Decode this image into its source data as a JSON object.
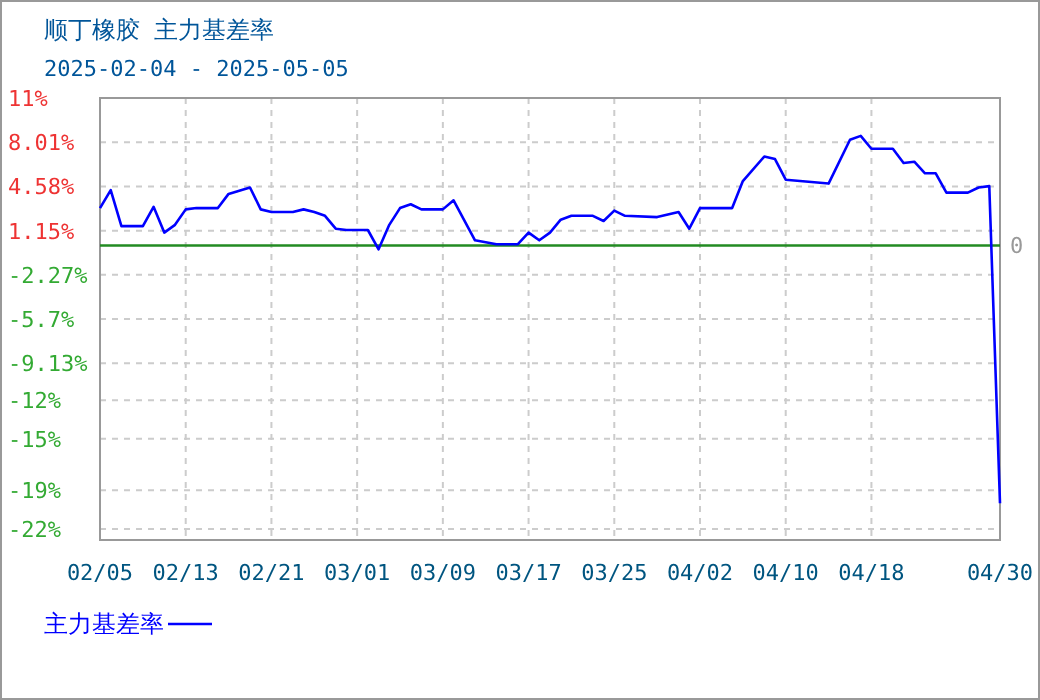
{
  "chart_data": {
    "type": "line",
    "title": "顺丁橡胶  主力基差率",
    "subtitle": "2025-02-04 - 2025-05-05",
    "x": [
      "2025-02-05",
      "2025-02-06",
      "2025-02-07",
      "2025-02-09",
      "2025-02-10",
      "2025-02-11",
      "2025-02-12",
      "2025-02-13",
      "2025-02-14",
      "2025-02-16",
      "2025-02-17",
      "2025-02-19",
      "2025-02-20",
      "2025-02-21",
      "2025-02-23",
      "2025-02-24",
      "2025-02-25",
      "2025-02-26",
      "2025-02-27",
      "2025-02-28",
      "2025-03-02",
      "2025-03-03",
      "2025-03-04",
      "2025-03-05",
      "2025-03-06",
      "2025-03-07",
      "2025-03-09",
      "2025-03-10",
      "2025-03-12",
      "2025-03-14",
      "2025-03-16",
      "2025-03-17",
      "2025-03-18",
      "2025-03-19",
      "2025-03-20",
      "2025-03-21",
      "2025-03-23",
      "2025-03-24",
      "2025-03-25",
      "2025-03-26",
      "2025-03-29",
      "2025-03-31",
      "2025-04-01",
      "2025-04-02",
      "2025-04-05",
      "2025-04-06",
      "2025-04-08",
      "2025-04-09",
      "2025-04-10",
      "2025-04-14",
      "2025-04-16",
      "2025-04-17",
      "2025-04-18",
      "2025-04-20",
      "2025-04-21",
      "2025-04-22",
      "2025-04-23",
      "2025-04-24",
      "2025-04-25",
      "2025-04-27",
      "2025-04-28",
      "2025-04-29",
      "2025-04-30"
    ],
    "series": [
      {
        "name": "主力基差率",
        "color": "#0000ff",
        "values": [
          2.9,
          4.3,
          1.5,
          1.5,
          3.0,
          1.0,
          1.6,
          2.8,
          2.9,
          2.9,
          4.0,
          4.5,
          2.8,
          2.6,
          2.6,
          2.8,
          2.6,
          2.3,
          1.3,
          1.2,
          1.2,
          -0.3,
          1.6,
          2.9,
          3.2,
          2.8,
          2.8,
          3.5,
          0.4,
          0.1,
          0.1,
          1.0,
          0.4,
          1.0,
          2.0,
          2.3,
          2.3,
          1.9,
          2.7,
          2.3,
          2.2,
          2.6,
          1.3,
          2.9,
          2.9,
          5.0,
          6.9,
          6.7,
          5.1,
          4.8,
          8.2,
          8.5,
          7.5,
          7.5,
          6.4,
          6.5,
          5.6,
          5.6,
          4.1,
          4.1,
          4.5,
          4.6,
          -20.0
        ]
      }
    ],
    "xlim": [
      "2025-02-05",
      "2025-04-30"
    ],
    "xticks": [
      {
        "value": "2025-02-05",
        "label": "02/05"
      },
      {
        "value": "2025-02-13",
        "label": "02/13"
      },
      {
        "value": "2025-02-21",
        "label": "02/21"
      },
      {
        "value": "2025-03-01",
        "label": "03/01"
      },
      {
        "value": "2025-03-09",
        "label": "03/09"
      },
      {
        "value": "2025-03-17",
        "label": "03/17"
      },
      {
        "value": "2025-03-25",
        "label": "03/25"
      },
      {
        "value": "2025-04-02",
        "label": "04/02"
      },
      {
        "value": "2025-04-10",
        "label": "04/10"
      },
      {
        "value": "2025-04-18",
        "label": "04/18"
      },
      {
        "value": "2025-04-30",
        "label": "04/30"
      }
    ],
    "ylim": [
      -22.85,
      11.44
    ],
    "yticks": [
      {
        "value": 11.44,
        "label": "11%"
      },
      {
        "value": 8.01,
        "label": "8.01%"
      },
      {
        "value": 4.58,
        "label": "4.58%"
      },
      {
        "value": 1.15,
        "label": "1.15%"
      },
      {
        "value": -2.27,
        "label": "-2.27%"
      },
      {
        "value": -5.7,
        "label": "-5.7%"
      },
      {
        "value": -9.13,
        "label": "-9.13%"
      },
      {
        "value": -12,
        "label": "-12%"
      },
      {
        "value": -15,
        "label": "-15%"
      },
      {
        "value": -19,
        "label": "-19%"
      },
      {
        "value": -22,
        "label": "-22%"
      }
    ],
    "ref_lines": [
      {
        "axis": "y",
        "value": 0,
        "label": "0",
        "color": "#228b22"
      }
    ],
    "grid": true,
    "legend": "bottom left",
    "marker": "none",
    "line_style": "solid"
  }
}
